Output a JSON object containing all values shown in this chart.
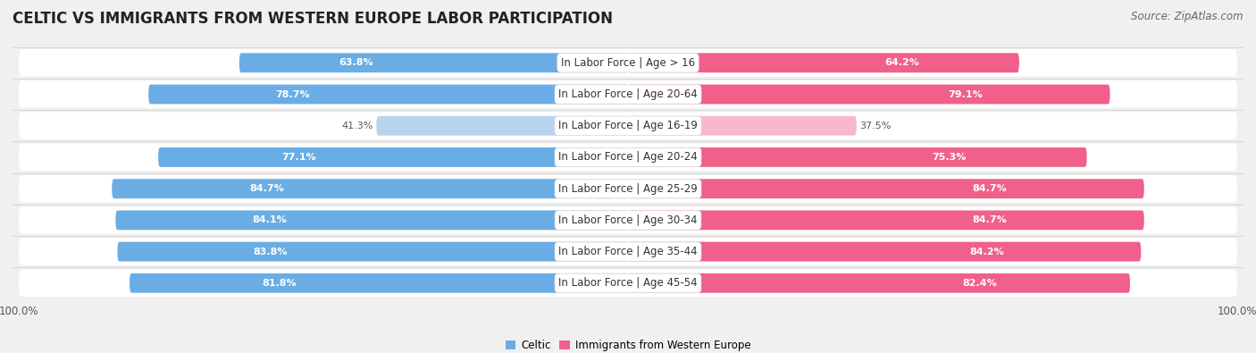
{
  "title": "CELTIC VS IMMIGRANTS FROM WESTERN EUROPE LABOR PARTICIPATION",
  "source": "Source: ZipAtlas.com",
  "categories": [
    "In Labor Force | Age > 16",
    "In Labor Force | Age 20-64",
    "In Labor Force | Age 16-19",
    "In Labor Force | Age 20-24",
    "In Labor Force | Age 25-29",
    "In Labor Force | Age 30-34",
    "In Labor Force | Age 35-44",
    "In Labor Force | Age 45-54"
  ],
  "celtic_values": [
    63.8,
    78.7,
    41.3,
    77.1,
    84.7,
    84.1,
    83.8,
    81.8
  ],
  "immigrant_values": [
    64.2,
    79.1,
    37.5,
    75.3,
    84.7,
    84.7,
    84.2,
    82.4
  ],
  "celtic_color": "#6aade4",
  "celtic_color_light": "#b8d4ee",
  "immigrant_color": "#f0608a",
  "immigrant_color_light": "#f8b8cc",
  "row_bg_color": "#e8e8e8",
  "label_color_dark": "#555555",
  "label_color_white": "#ffffff",
  "max_value": 100.0,
  "legend_celtic": "Celtic",
  "legend_immigrant": "Immigrants from Western Europe",
  "bar_height": 0.62,
  "font_size_title": 12,
  "font_size_label": 8.5,
  "font_size_value": 8,
  "font_size_axis": 8.5,
  "font_size_source": 8.5,
  "page_bg": "#f0f0f0"
}
